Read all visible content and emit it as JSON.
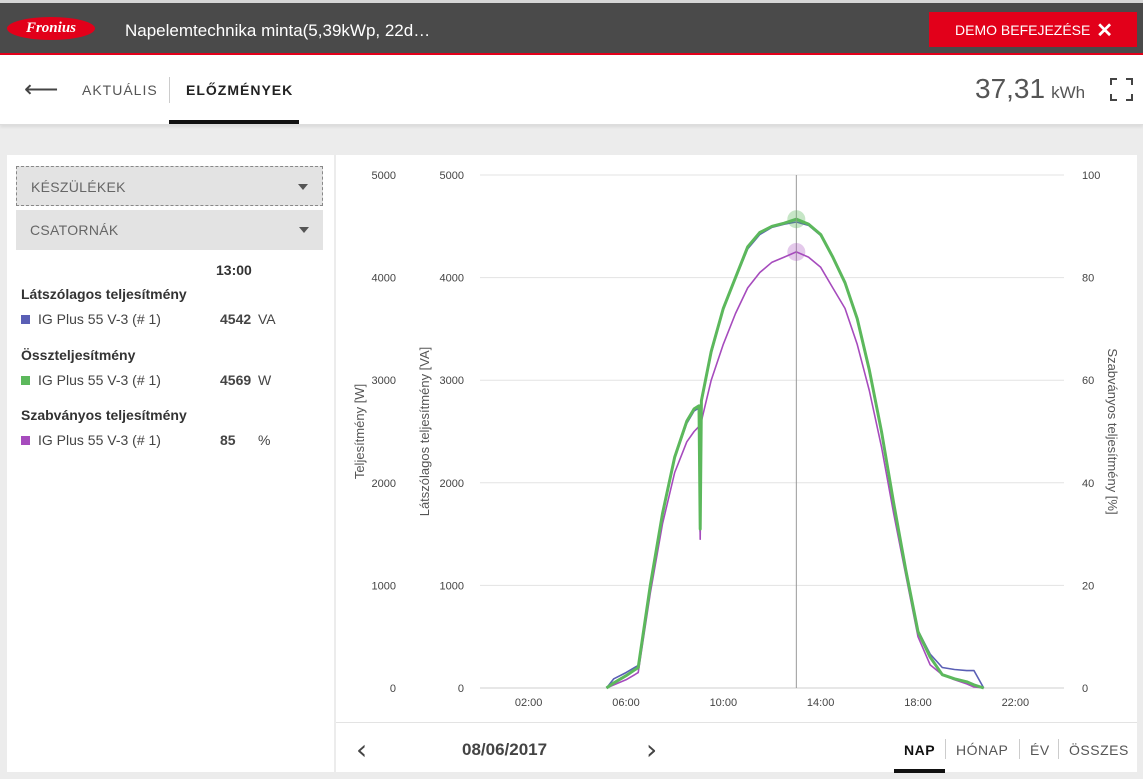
{
  "header": {
    "logo_text": "Fronius",
    "title": "Napelemtechnika minta(5,39kWp, 22d…",
    "demo_button": "DEMO BEFEJEZÉSE",
    "close_icon": "close-icon",
    "brand_color": "#e2001a"
  },
  "nav": {
    "back_icon": "arrow-left-icon",
    "tabs": [
      {
        "label": "AKTUÁLIS",
        "active": false
      },
      {
        "label": "ELŐZMÉNYEK",
        "active": true
      }
    ],
    "energy_value": "37,31",
    "energy_unit": "kWh",
    "fullscreen_icon": "fullscreen-icon"
  },
  "filters": {
    "devices": "KÉSZÜLÉKEK",
    "channels": "CSATORNÁK"
  },
  "legend": {
    "time": "13:00",
    "groups": [
      {
        "title": "Látszólagos teljesítmény",
        "item": "IG Plus 55 V-3 (# 1)",
        "value": "4542",
        "unit": "VA",
        "color": "#5a5fb5"
      },
      {
        "title": "Összteljesítmény",
        "item": "IG Plus 55 V-3 (# 1)",
        "value": "4569",
        "unit": "W",
        "color": "#5cb85c"
      },
      {
        "title": "Szabványos teljesítmény",
        "item": "IG Plus 55 V-3 (# 1)",
        "value": "85",
        "unit": "%",
        "color": "#a64bbd"
      }
    ]
  },
  "chart_data": {
    "type": "line",
    "x_ticks": [
      "02:00",
      "06:00",
      "10:00",
      "14:00",
      "18:00",
      "22:00"
    ],
    "x_range_hours": [
      0,
      24
    ],
    "y_left_outer": {
      "label": "Teljesítmény [W]",
      "ticks": [
        "0",
        "1000",
        "2000",
        "3000",
        "4000",
        "5000"
      ],
      "range": [
        0,
        5000
      ]
    },
    "y_left_inner": {
      "label": "Látszólagos teljesítmény [VA]",
      "ticks": [
        "0",
        "1000",
        "2000",
        "3000",
        "4000",
        "5000"
      ],
      "range": [
        0,
        5000
      ]
    },
    "y_right": {
      "label": "Szabványos teljesítmény [%]",
      "ticks": [
        "0",
        "20",
        "40",
        "60",
        "80",
        "100"
      ],
      "range": [
        0,
        100
      ]
    },
    "grid": "horizontal",
    "cursor_time_hours": 13,
    "series": [
      {
        "name": "Összteljesítmény",
        "color": "#5cb85c",
        "axis": "W",
        "x": [
          5.2,
          5.5,
          6.0,
          6.5,
          7.0,
          7.5,
          8.0,
          8.5,
          8.8,
          9.0,
          9.05,
          9.1,
          9.5,
          10.0,
          10.5,
          11.0,
          11.5,
          12.0,
          12.5,
          13.0,
          13.5,
          14.0,
          14.5,
          15.0,
          15.5,
          16.0,
          16.5,
          17.0,
          17.5,
          18.0,
          18.5,
          19.0,
          19.5,
          20.0,
          20.3,
          20.7
        ],
        "y": [
          0,
          50,
          120,
          200,
          1000,
          1700,
          2250,
          2600,
          2720,
          2750,
          1550,
          2800,
          3280,
          3700,
          4000,
          4300,
          4440,
          4500,
          4530,
          4569,
          4520,
          4420,
          4200,
          3950,
          3600,
          3100,
          2500,
          1800,
          1150,
          550,
          300,
          130,
          90,
          60,
          30,
          0
        ]
      },
      {
        "name": "Látszólagos teljesítmény",
        "color": "#5a5fb5",
        "axis": "VA",
        "x": [
          5.2,
          5.5,
          6.0,
          6.5,
          7.0,
          7.5,
          8.0,
          8.5,
          8.8,
          9.0,
          9.05,
          9.1,
          9.5,
          10.0,
          10.5,
          11.0,
          11.5,
          12.0,
          12.5,
          13.0,
          13.5,
          14.0,
          14.5,
          15.0,
          15.5,
          16.0,
          16.5,
          17.0,
          17.5,
          18.0,
          18.5,
          19.0,
          19.5,
          20.0,
          20.3,
          20.7
        ],
        "y": [
          0,
          90,
          150,
          220,
          1000,
          1700,
          2240,
          2580,
          2700,
          2730,
          1520,
          2780,
          3260,
          3690,
          3990,
          4280,
          4420,
          4490,
          4520,
          4542,
          4510,
          4410,
          4190,
          3940,
          3590,
          3090,
          2490,
          1790,
          1150,
          560,
          330,
          200,
          180,
          170,
          170,
          0
        ]
      },
      {
        "name": "Szabványos teljesítmény",
        "color": "#a64bbd",
        "axis": "%",
        "x": [
          5.2,
          5.5,
          6.0,
          6.5,
          7.0,
          7.5,
          8.0,
          8.5,
          8.8,
          9.0,
          9.05,
          9.1,
          9.5,
          10.0,
          10.5,
          11.0,
          11.5,
          12.0,
          12.5,
          13.0,
          13.5,
          14.0,
          14.5,
          15.0,
          15.5,
          16.0,
          16.5,
          17.0,
          17.5,
          18.0,
          18.5,
          19.0,
          19.5,
          20.0,
          20.3,
          20.7
        ],
        "y": [
          0,
          0.6,
          1.6,
          3.0,
          18.5,
          32,
          42,
          48,
          50,
          51,
          29,
          52,
          60,
          67,
          73,
          78,
          81,
          83,
          84,
          85,
          84,
          82,
          78,
          74,
          67,
          58,
          47,
          34,
          22,
          10,
          4.5,
          2.6,
          1.6,
          0.8,
          0.2,
          0
        ]
      }
    ]
  },
  "footer": {
    "prev_icon": "chevron-left-icon",
    "date": "08/06/2017",
    "next_icon": "chevron-right-icon",
    "periods": [
      {
        "label": "NAP",
        "active": true
      },
      {
        "label": "HÓNAP",
        "active": false
      },
      {
        "label": "ÉV",
        "active": false
      },
      {
        "label": "ÖSSZES",
        "active": false
      }
    ]
  }
}
